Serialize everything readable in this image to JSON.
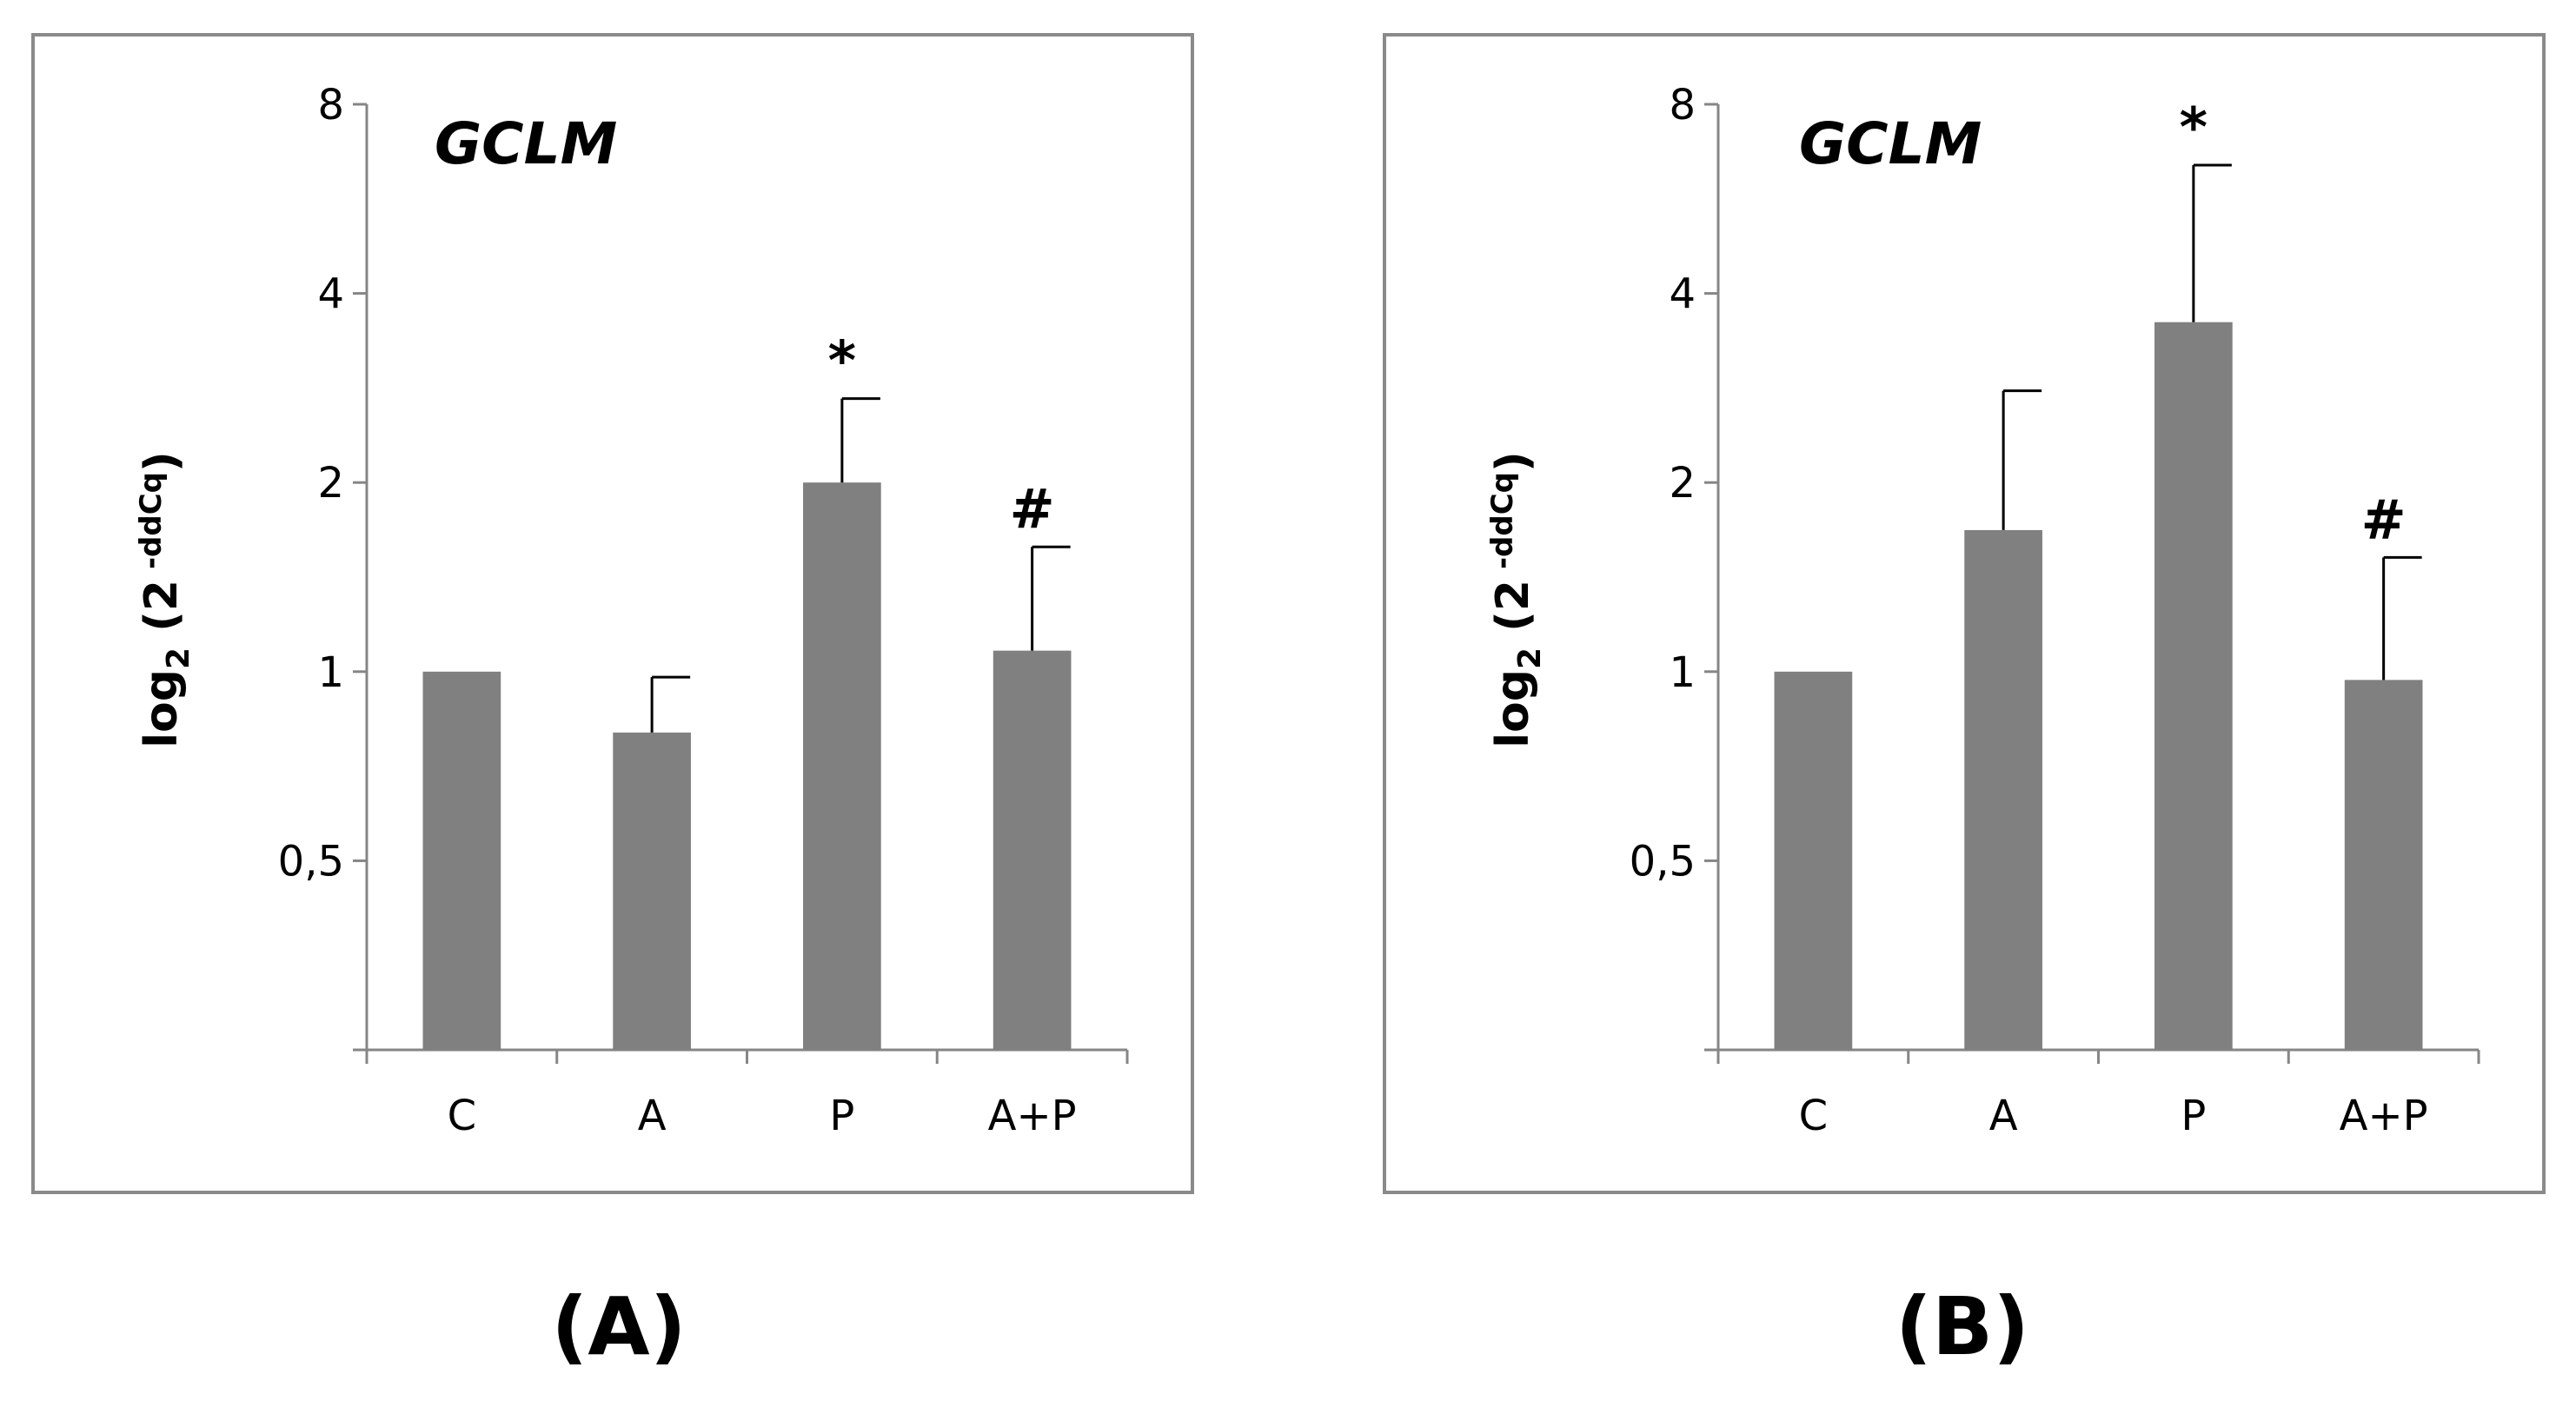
{
  "chart_data": [
    {
      "panel_label": "(A)",
      "type": "bar",
      "title": "GCLM",
      "ylabel_main": "log",
      "ylabel_sub": "2",
      "ylabel_paren_open": " (2",
      "ylabel_sup": " -ddCq",
      "ylabel_paren_close": ")",
      "y_scale": "log2",
      "ylim": [
        0.25,
        8
      ],
      "y_ticks": [
        0.5,
        1,
        2,
        4,
        8
      ],
      "y_tick_labels": [
        "0,5",
        "1",
        "2",
        "4",
        "8"
      ],
      "categories": [
        "C",
        "A",
        "P",
        "A+P"
      ],
      "values": [
        1.0,
        0.8,
        2.0,
        1.08
      ],
      "errors": [
        0.0,
        0.18,
        0.72,
        0.5
      ],
      "annotations": [
        "",
        "",
        "*",
        "#"
      ],
      "grid": false,
      "legend": "none"
    },
    {
      "panel_label": "(B)",
      "type": "bar",
      "title": "GCLM",
      "ylabel_main": "log",
      "ylabel_sub": "2",
      "ylabel_paren_open": " (2",
      "ylabel_sup": " -ddCq",
      "ylabel_paren_close": ")",
      "y_scale": "log2",
      "ylim": [
        0.25,
        8
      ],
      "y_ticks": [
        0.5,
        1,
        2,
        4,
        8
      ],
      "y_tick_labels": [
        "0,5",
        "1",
        "2",
        "4",
        "8"
      ],
      "categories": [
        "C",
        "A",
        "P",
        "A+P"
      ],
      "values": [
        1.0,
        1.68,
        3.6,
        0.97
      ],
      "errors": [
        0.0,
        1.12,
        2.8,
        0.55
      ],
      "annotations": [
        "",
        "",
        "*",
        "#"
      ],
      "grid": false,
      "legend": "none"
    }
  ]
}
